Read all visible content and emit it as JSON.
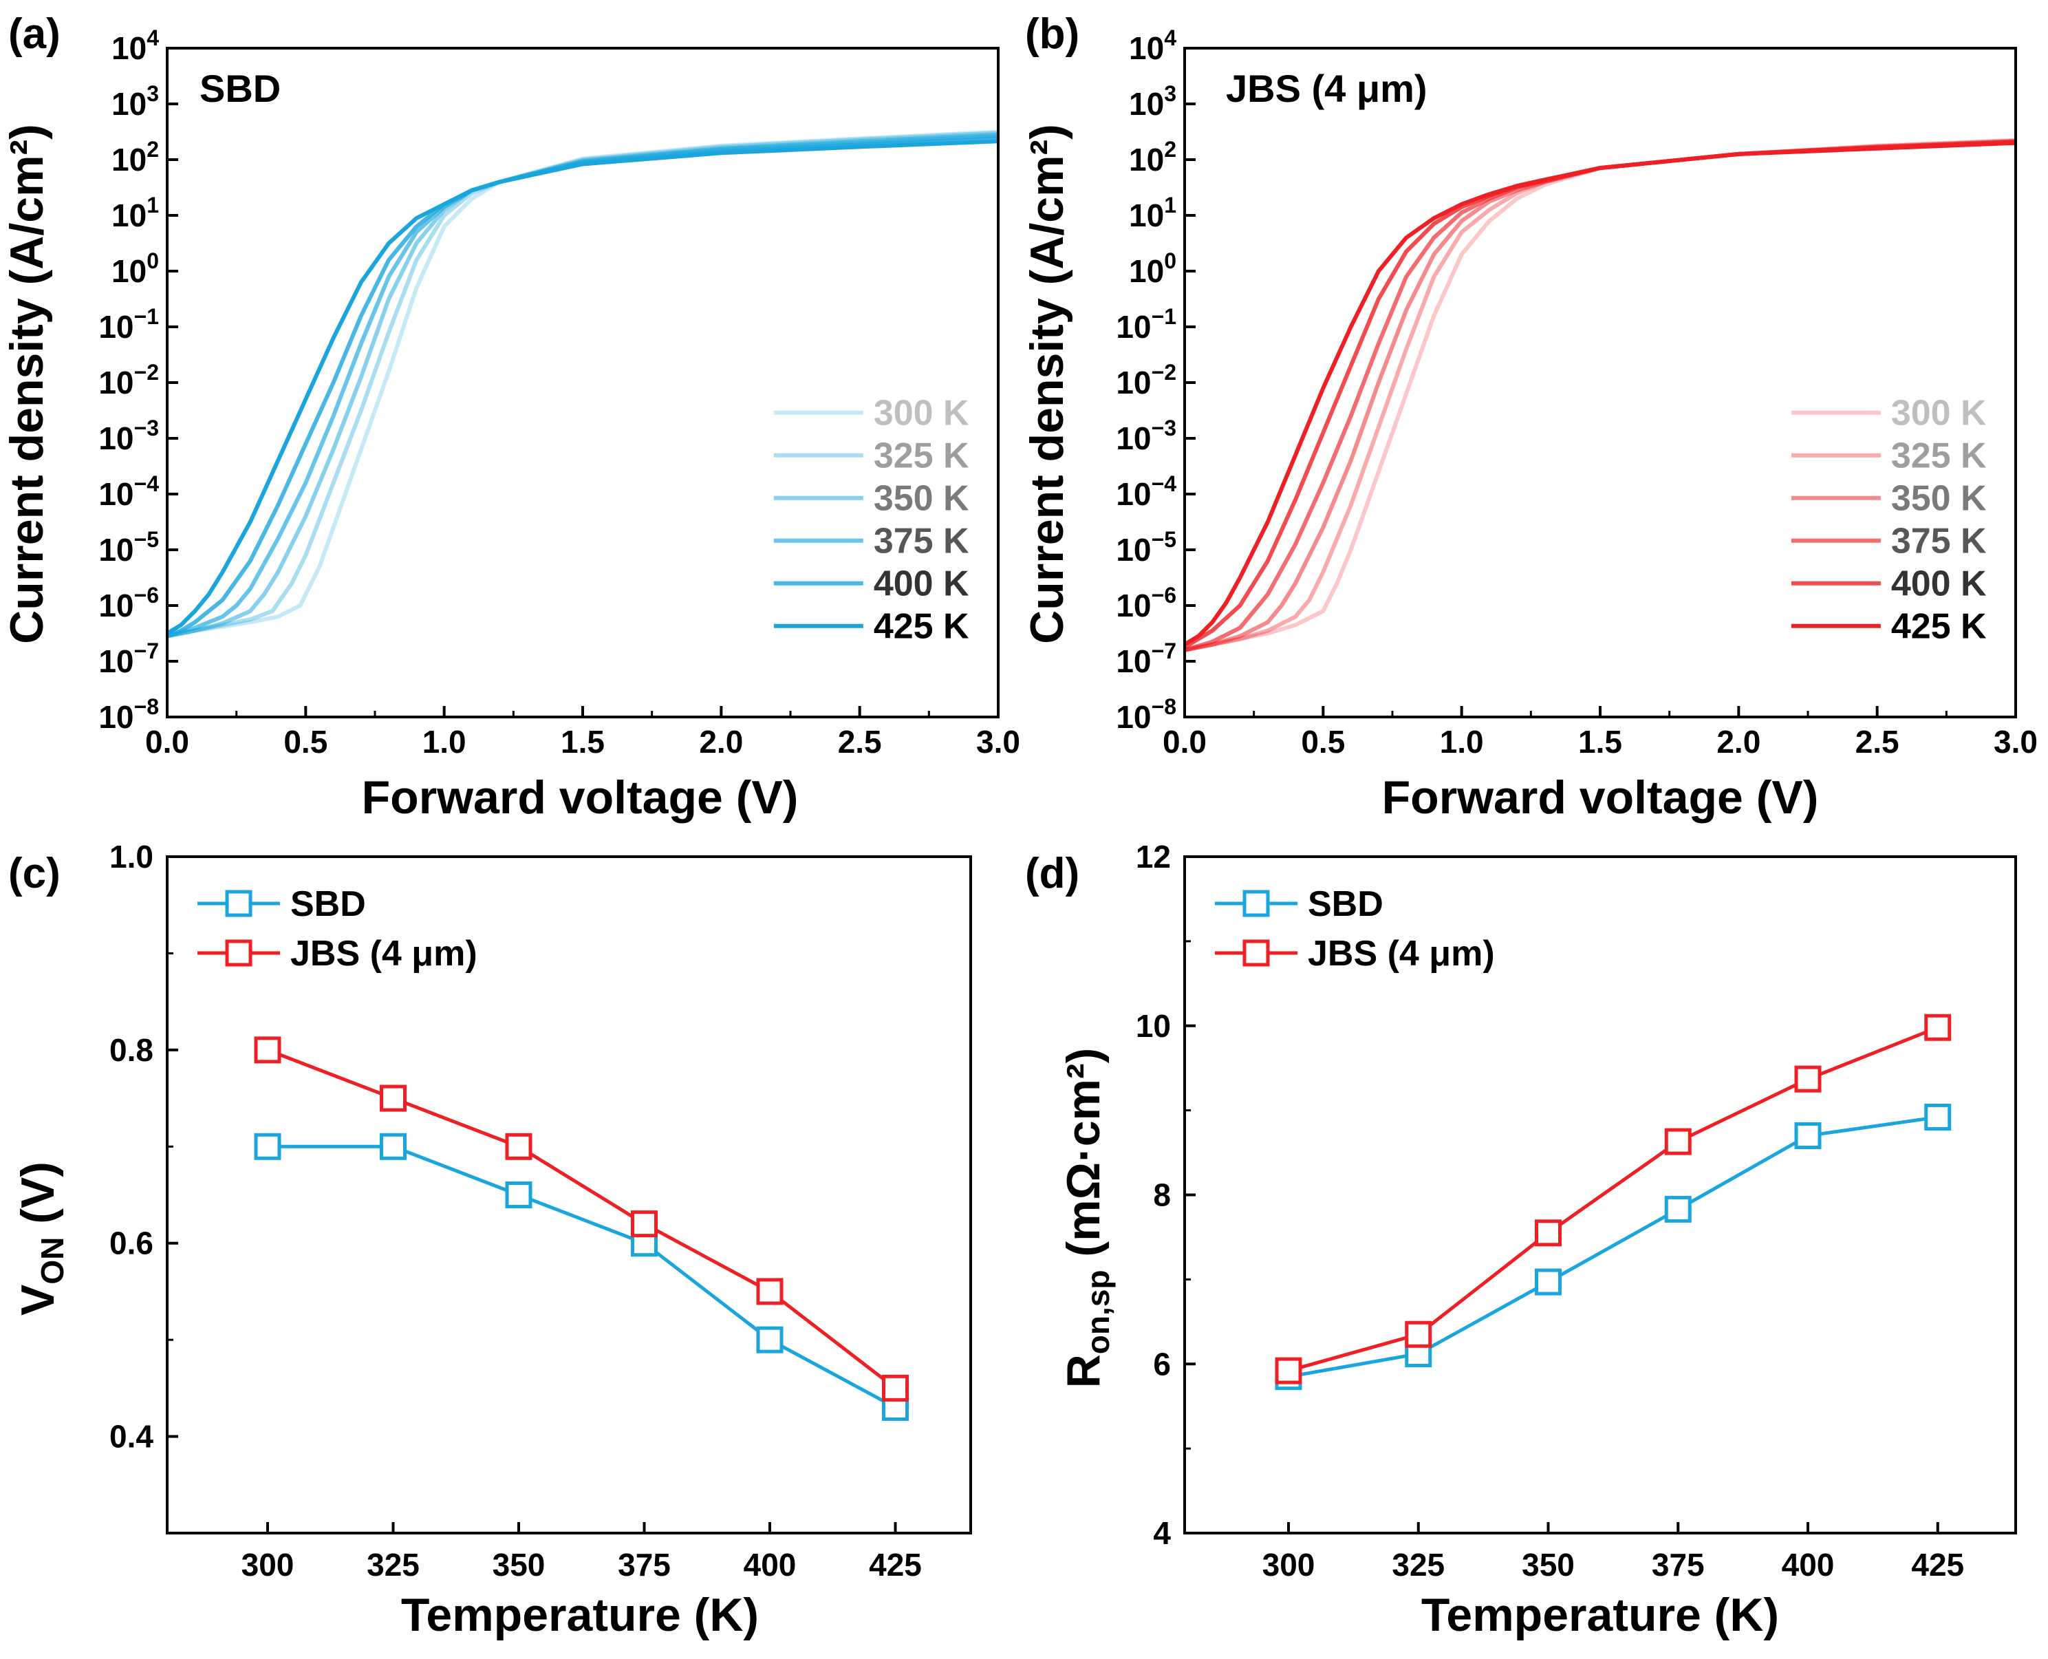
{
  "colors": {
    "sbd": "#1aa6dc",
    "jbs": "#ee2026",
    "axis": "#000000"
  },
  "chart_data": [
    {
      "panel": "(a)",
      "type": "line",
      "yscale": "log",
      "annotation": "SBD",
      "xlabel": "Forward voltage (V)",
      "ylabel": "Current density (A/cm²)",
      "xlim": [
        0.0,
        3.0
      ],
      "ylim_exponent": [
        -8,
        4
      ],
      "x_ticks": [
        "0.0",
        "0.5",
        "1.0",
        "1.5",
        "2.0",
        "2.5",
        "3.0"
      ],
      "y_ticks": [
        {
          "base": "10",
          "exp": "−8"
        },
        {
          "base": "10",
          "exp": "−7"
        },
        {
          "base": "10",
          "exp": "−6"
        },
        {
          "base": "10",
          "exp": "−5"
        },
        {
          "base": "10",
          "exp": "−4"
        },
        {
          "base": "10",
          "exp": "−3"
        },
        {
          "base": "10",
          "exp": "−2"
        },
        {
          "base": "10",
          "exp": "−1"
        },
        {
          "base": "10",
          "exp": "0"
        },
        {
          "base": "10",
          "exp": "1"
        },
        {
          "base": "10",
          "exp": "2"
        },
        {
          "base": "10",
          "exp": "3"
        },
        {
          "base": "10",
          "exp": "4"
        }
      ],
      "legend_position": "lower-right",
      "series": [
        {
          "name": "300 K",
          "opacity": 0.25,
          "log10_j": {
            "x": [
              0.0,
              0.1,
              0.2,
              0.3,
              0.4,
              0.48,
              0.55,
              0.6,
              0.7,
              0.8,
              0.9,
              1.0,
              1.1,
              1.2,
              1.5,
              2.0,
              2.5,
              3.0
            ],
            "y": [
              -6.55,
              -6.45,
              -6.38,
              -6.3,
              -6.2,
              -6.0,
              -5.3,
              -4.6,
              -3.2,
              -1.8,
              -0.3,
              0.8,
              1.3,
              1.6,
              2.02,
              2.25,
              2.38,
              2.5
            ]
          }
        },
        {
          "name": "325 K",
          "opacity": 0.38,
          "log10_j": {
            "x": [
              0.0,
              0.1,
              0.2,
              0.3,
              0.38,
              0.45,
              0.5,
              0.6,
              0.7,
              0.8,
              0.9,
              1.0,
              1.1,
              1.2,
              1.5,
              2.0,
              2.5,
              3.0
            ],
            "y": [
              -6.55,
              -6.45,
              -6.35,
              -6.25,
              -6.1,
              -5.6,
              -5.1,
              -3.8,
              -2.5,
              -1.1,
              0.2,
              1.0,
              1.4,
              1.6,
              2.0,
              2.23,
              2.36,
              2.48
            ]
          }
        },
        {
          "name": "350 K",
          "opacity": 0.52,
          "log10_j": {
            "x": [
              0.0,
              0.1,
              0.2,
              0.3,
              0.35,
              0.4,
              0.5,
              0.6,
              0.7,
              0.8,
              0.9,
              1.0,
              1.1,
              1.2,
              1.5,
              2.0,
              2.5,
              3.0
            ],
            "y": [
              -6.55,
              -6.45,
              -6.32,
              -6.1,
              -5.8,
              -5.4,
              -4.4,
              -3.2,
              -1.9,
              -0.5,
              0.5,
              1.1,
              1.45,
              1.6,
              1.98,
              2.2,
              2.33,
              2.45
            ]
          }
        },
        {
          "name": "375 K",
          "opacity": 0.66,
          "log10_j": {
            "x": [
              0.0,
              0.1,
              0.2,
              0.25,
              0.3,
              0.4,
              0.5,
              0.6,
              0.7,
              0.8,
              0.9,
              1.0,
              1.1,
              1.2,
              1.5,
              2.0,
              2.5,
              3.0
            ],
            "y": [
              -6.55,
              -6.4,
              -6.2,
              -6.0,
              -5.7,
              -4.8,
              -3.8,
              -2.6,
              -1.3,
              -0.1,
              0.7,
              1.15,
              1.45,
              1.6,
              1.96,
              2.18,
              2.3,
              2.42
            ]
          }
        },
        {
          "name": "400 K",
          "opacity": 0.8,
          "log10_j": {
            "x": [
              0.0,
              0.05,
              0.1,
              0.2,
              0.3,
              0.4,
              0.5,
              0.6,
              0.7,
              0.8,
              0.9,
              1.0,
              1.1,
              1.2,
              1.5,
              2.0,
              2.5,
              3.0
            ],
            "y": [
              -6.55,
              -6.45,
              -6.3,
              -5.9,
              -5.2,
              -4.2,
              -3.1,
              -2.0,
              -0.8,
              0.2,
              0.8,
              1.2,
              1.45,
              1.6,
              1.94,
              2.15,
              2.27,
              2.38
            ]
          }
        },
        {
          "name": "425 K",
          "opacity": 1.0,
          "log10_j": {
            "x": [
              0.0,
              0.05,
              0.1,
              0.15,
              0.2,
              0.3,
              0.4,
              0.5,
              0.6,
              0.7,
              0.8,
              0.9,
              1.0,
              1.1,
              1.2,
              1.5,
              2.0,
              2.5,
              3.0
            ],
            "y": [
              -6.5,
              -6.35,
              -6.1,
              -5.8,
              -5.4,
              -4.5,
              -3.4,
              -2.3,
              -1.2,
              -0.2,
              0.5,
              0.95,
              1.2,
              1.45,
              1.6,
              1.92,
              2.12,
              2.23,
              2.33
            ]
          }
        }
      ]
    },
    {
      "panel": "(b)",
      "type": "line",
      "yscale": "log",
      "annotation": "JBS (4 μm)",
      "xlabel": "Forward voltage (V)",
      "ylabel": "Current density (A/cm²)",
      "xlim": [
        0.0,
        3.0
      ],
      "ylim_exponent": [
        -8,
        4
      ],
      "x_ticks": [
        "0.0",
        "0.5",
        "1.0",
        "1.5",
        "2.0",
        "2.5",
        "3.0"
      ],
      "y_ticks": [
        {
          "base": "10",
          "exp": "−8"
        },
        {
          "base": "10",
          "exp": "−7"
        },
        {
          "base": "10",
          "exp": "−6"
        },
        {
          "base": "10",
          "exp": "−5"
        },
        {
          "base": "10",
          "exp": "−4"
        },
        {
          "base": "10",
          "exp": "−3"
        },
        {
          "base": "10",
          "exp": "−2"
        },
        {
          "base": "10",
          "exp": "−1"
        },
        {
          "base": "10",
          "exp": "0"
        },
        {
          "base": "10",
          "exp": "1"
        },
        {
          "base": "10",
          "exp": "2"
        },
        {
          "base": "10",
          "exp": "3"
        },
        {
          "base": "10",
          "exp": "4"
        }
      ],
      "legend_position": "lower-right",
      "series": [
        {
          "name": "300 K",
          "opacity": 0.25,
          "log10_j": {
            "x": [
              0.0,
              0.1,
              0.2,
              0.3,
              0.4,
              0.5,
              0.55,
              0.6,
              0.7,
              0.8,
              0.9,
              1.0,
              1.1,
              1.2,
              1.3,
              1.5,
              2.0,
              2.5,
              3.0
            ],
            "y": [
              -6.8,
              -6.7,
              -6.6,
              -6.5,
              -6.35,
              -6.1,
              -5.6,
              -5.0,
              -3.6,
              -2.2,
              -0.8,
              0.3,
              0.9,
              1.3,
              1.55,
              1.85,
              2.1,
              2.25,
              2.35
            ]
          }
        },
        {
          "name": "325 K",
          "opacity": 0.38,
          "log10_j": {
            "x": [
              0.0,
              0.1,
              0.2,
              0.3,
              0.4,
              0.45,
              0.5,
              0.6,
              0.7,
              0.8,
              0.9,
              1.0,
              1.1,
              1.2,
              1.3,
              1.5,
              2.0,
              2.5,
              3.0
            ],
            "y": [
              -6.8,
              -6.7,
              -6.6,
              -6.45,
              -6.2,
              -5.9,
              -5.4,
              -4.2,
              -2.8,
              -1.4,
              -0.1,
              0.7,
              1.1,
              1.4,
              1.6,
              1.85,
              2.1,
              2.24,
              2.34
            ]
          }
        },
        {
          "name": "350 K",
          "opacity": 0.52,
          "log10_j": {
            "x": [
              0.0,
              0.1,
              0.2,
              0.3,
              0.35,
              0.4,
              0.5,
              0.6,
              0.7,
              0.8,
              0.9,
              1.0,
              1.1,
              1.2,
              1.3,
              1.5,
              2.0,
              2.5,
              3.0
            ],
            "y": [
              -6.8,
              -6.7,
              -6.55,
              -6.3,
              -6.0,
              -5.6,
              -4.6,
              -3.4,
              -2.0,
              -0.7,
              0.3,
              0.9,
              1.25,
              1.45,
              1.6,
              1.85,
              2.1,
              2.23,
              2.33
            ]
          }
        },
        {
          "name": "375 K",
          "opacity": 0.66,
          "log10_j": {
            "x": [
              0.0,
              0.1,
              0.2,
              0.25,
              0.3,
              0.4,
              0.5,
              0.6,
              0.7,
              0.8,
              0.9,
              1.0,
              1.1,
              1.2,
              1.3,
              1.5,
              2.0,
              2.5,
              3.0
            ],
            "y": [
              -6.8,
              -6.65,
              -6.4,
              -6.1,
              -5.8,
              -4.9,
              -3.8,
              -2.6,
              -1.3,
              -0.1,
              0.6,
              1.05,
              1.3,
              1.5,
              1.62,
              1.85,
              2.1,
              2.22,
              2.32
            ]
          }
        },
        {
          "name": "400 K",
          "opacity": 0.8,
          "log10_j": {
            "x": [
              0.0,
              0.05,
              0.1,
              0.2,
              0.3,
              0.4,
              0.5,
              0.6,
              0.7,
              0.8,
              0.9,
              1.0,
              1.1,
              1.2,
              1.3,
              1.5,
              2.0,
              2.5,
              3.0
            ],
            "y": [
              -6.75,
              -6.6,
              -6.45,
              -6.0,
              -5.2,
              -4.1,
              -2.9,
              -1.7,
              -0.5,
              0.35,
              0.85,
              1.15,
              1.35,
              1.52,
              1.63,
              1.85,
              2.1,
              2.22,
              2.31
            ]
          }
        },
        {
          "name": "425 K",
          "opacity": 1.0,
          "log10_j": {
            "x": [
              0.0,
              0.05,
              0.1,
              0.15,
              0.2,
              0.3,
              0.4,
              0.5,
              0.6,
              0.7,
              0.8,
              0.9,
              1.0,
              1.1,
              1.2,
              1.3,
              1.5,
              2.0,
              2.5,
              3.0
            ],
            "y": [
              -6.7,
              -6.55,
              -6.3,
              -5.95,
              -5.5,
              -4.5,
              -3.3,
              -2.1,
              -1.0,
              0.0,
              0.6,
              0.95,
              1.2,
              1.38,
              1.53,
              1.64,
              1.85,
              2.1,
              2.2,
              2.3
            ]
          }
        }
      ]
    },
    {
      "panel": "(c)",
      "type": "line",
      "marker": "open-square",
      "xlabel": "Temperature (K)",
      "ylabel_main": "V",
      "ylabel_sub": "ON",
      "ylabel_tail": " (V)",
      "xlim": [
        280,
        440
      ],
      "ylim": [
        0.3,
        1.0
      ],
      "x_ticks": [
        "300",
        "325",
        "350",
        "375",
        "400",
        "425"
      ],
      "y_ticks": [
        "0.4",
        "0.6",
        "0.8",
        "1.0"
      ],
      "legend_position": "top-left",
      "categories": [
        300,
        325,
        350,
        375,
        400,
        425
      ],
      "series": [
        {
          "name": "SBD",
          "color_key": "sbd",
          "values": [
            0.7,
            0.7,
            0.65,
            0.6,
            0.5,
            0.43
          ]
        },
        {
          "name": "JBS (4 μm)",
          "color_key": "jbs",
          "values": [
            0.8,
            0.75,
            0.7,
            0.62,
            0.55,
            0.45
          ]
        }
      ]
    },
    {
      "panel": "(d)",
      "type": "line",
      "marker": "open-square",
      "xlabel": "Temperature (K)",
      "ylabel_main": "R",
      "ylabel_sub": "on,sp",
      "ylabel_tail": " (mΩ·cm²)",
      "xlim": [
        280,
        440
      ],
      "ylim": [
        4,
        12
      ],
      "x_ticks": [
        "300",
        "325",
        "350",
        "375",
        "400",
        "425"
      ],
      "y_ticks": [
        "4",
        "6",
        "8",
        "10",
        "12"
      ],
      "legend_position": "top-left",
      "categories": [
        300,
        325,
        350,
        375,
        400,
        425
      ],
      "series": [
        {
          "name": "SBD",
          "color_key": "sbd",
          "values": [
            5.85,
            6.12,
            6.97,
            7.83,
            8.7,
            8.92
          ]
        },
        {
          "name": "JBS (4 μm)",
          "color_key": "jbs",
          "values": [
            5.92,
            6.35,
            7.55,
            8.63,
            9.37,
            9.98
          ]
        }
      ]
    }
  ]
}
